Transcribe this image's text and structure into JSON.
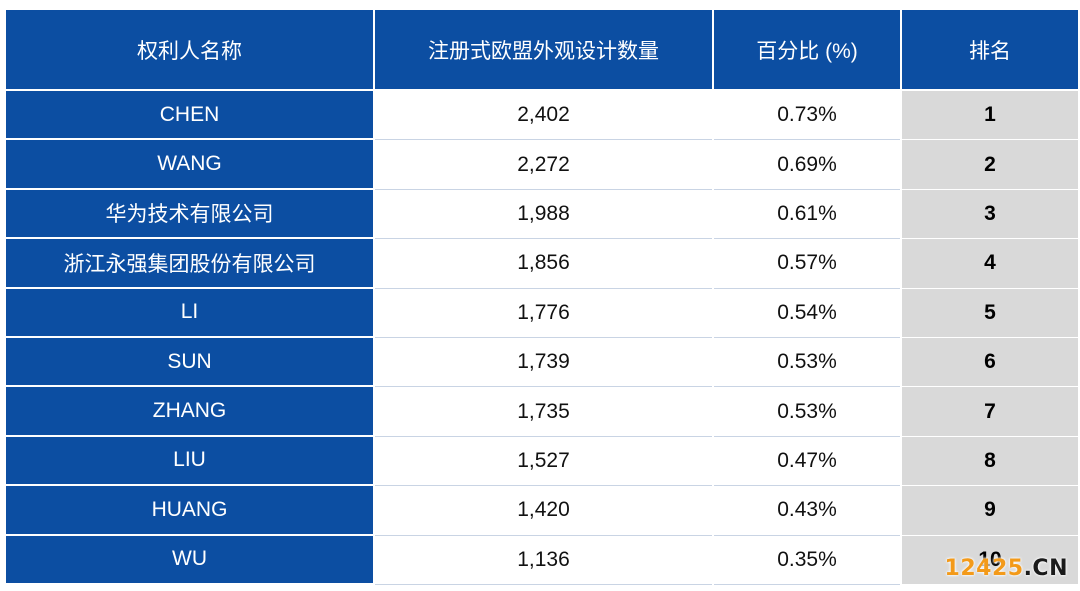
{
  "table": {
    "headers": [
      "权利人名称",
      "注册式欧盟外观设计数量",
      "百分比 (%)",
      "排名"
    ],
    "rows": [
      {
        "name": "CHEN",
        "count": "2,402",
        "percent": "0.73%",
        "rank": "1"
      },
      {
        "name": "WANG",
        "count": "2,272",
        "percent": "0.69%",
        "rank": "2"
      },
      {
        "name": "华为技术有限公司",
        "count": "1,988",
        "percent": "0.61%",
        "rank": "3"
      },
      {
        "name": "浙江永强集团股份有限公司",
        "count": "1,856",
        "percent": "0.57%",
        "rank": "4"
      },
      {
        "name": "LI",
        "count": "1,776",
        "percent": "0.54%",
        "rank": "5"
      },
      {
        "name": "SUN",
        "count": "1,739",
        "percent": "0.53%",
        "rank": "6"
      },
      {
        "name": "ZHANG",
        "count": "1,735",
        "percent": "0.53%",
        "rank": "7"
      },
      {
        "name": "LIU",
        "count": "1,527",
        "percent": "0.47%",
        "rank": "8"
      },
      {
        "name": "HUANG",
        "count": "1,420",
        "percent": "0.43%",
        "rank": "9"
      },
      {
        "name": "WU",
        "count": "1,136",
        "percent": "0.35%",
        "rank": "10"
      }
    ]
  },
  "watermark": {
    "part1": "12425",
    "part2": ".CN"
  }
}
